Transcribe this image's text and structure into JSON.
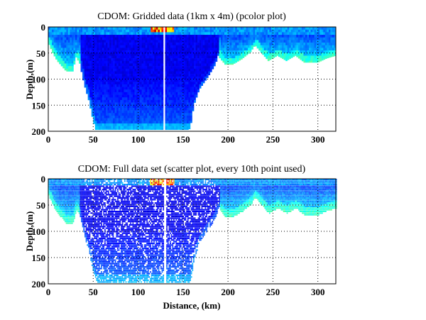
{
  "chart_data": [
    {
      "type": "heatmap",
      "title": "CDOM: Gridded data (1km x 4m) (pcolor plot)",
      "xlabel": "",
      "ylabel": "Depth,(m)",
      "xlim": [
        0,
        320
      ],
      "ylim": [
        200,
        0
      ],
      "xticks": [
        "0",
        "50",
        "100",
        "150",
        "200",
        "250",
        "300"
      ],
      "yticks": [
        "0",
        "50",
        "100",
        "150",
        "200"
      ],
      "grid": true,
      "colormap": "jet",
      "data_gap_km": 129,
      "bottom_profile": {
        "distance_km": [
          0,
          5,
          10,
          20,
          27,
          31,
          35,
          40,
          45,
          50,
          53,
          120,
          140,
          155,
          158,
          162,
          168,
          178,
          186,
          189,
          192,
          197,
          205,
          215,
          225,
          230,
          235,
          245,
          255,
          265,
          275,
          285,
          300,
          310,
          320
        ],
        "max_depth_m": [
          30,
          50,
          65,
          85,
          85,
          58,
          70,
          110,
          140,
          180,
          197,
          197,
          197,
          197,
          195,
          150,
          120,
          95,
          72,
          55,
          62,
          72,
          72,
          62,
          48,
          35,
          45,
          65,
          55,
          65,
          55,
          68,
          68,
          60,
          55
        ]
      },
      "surface_high_values_km": [
        112,
        140
      ]
    },
    {
      "type": "scatter",
      "title": "CDOM: Full data set (scatter plot, every 10th point used)",
      "xlabel": "Distance, (km)",
      "ylabel": "Depth,(m)",
      "xlim": [
        0,
        320
      ],
      "ylim": [
        200,
        0
      ],
      "xticks": [
        "0",
        "50",
        "100",
        "150",
        "200",
        "250",
        "300"
      ],
      "yticks": [
        "0",
        "50",
        "100",
        "150",
        "200"
      ],
      "grid": true,
      "colormap": "jet"
    }
  ]
}
